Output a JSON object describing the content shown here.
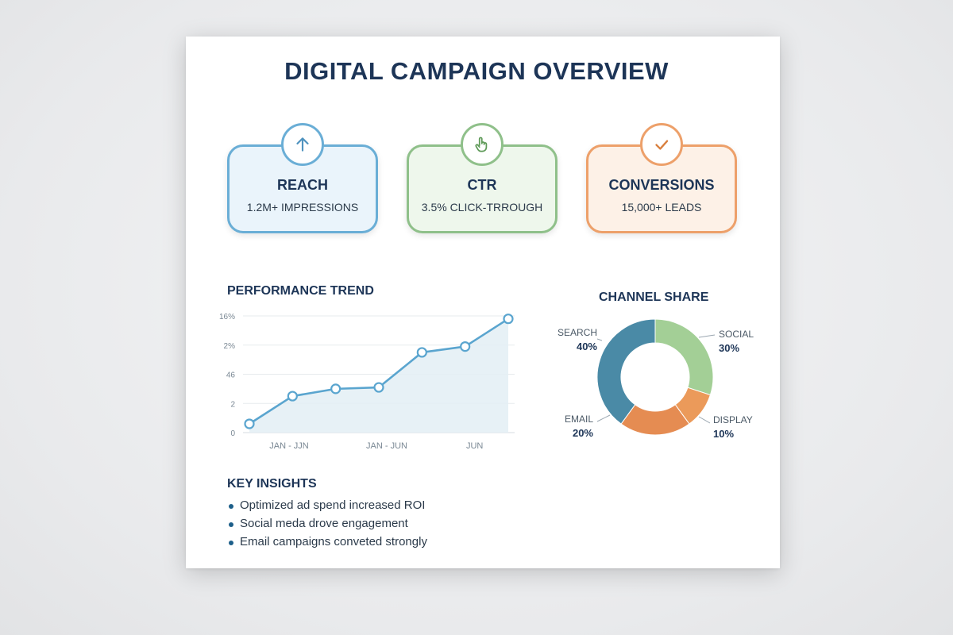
{
  "title": "DIGITAL CAMPAIGN OVERVIEW",
  "kpis": [
    {
      "label": "REACH",
      "value": "1.2M+ IMPRESSIONS",
      "icon": "arrow-up-icon",
      "color": "#6aaed6"
    },
    {
      "label": "CTR",
      "value": "3.5% CLICK-TRROUGH",
      "icon": "pointer-hand-icon",
      "color": "#8fc08a"
    },
    {
      "label": "CONVERSIONS",
      "value": "15,000+ LEADS",
      "icon": "checkmark-icon",
      "color": "#eda06a"
    }
  ],
  "performance": {
    "title": "PERFORMANCE TREND",
    "y_ticks": [
      "0",
      "2",
      "46",
      "2%",
      "16%"
    ]
  },
  "channel": {
    "title": "CHANNEL SHARE"
  },
  "insights": {
    "title": "KEY INSIGHTS",
    "items": [
      "Optimized ad spend increased ROI",
      "Social meda drove engagement",
      "Email campaigns conveted strongly"
    ]
  },
  "chart_data": [
    {
      "type": "area",
      "title": "PERFORMANCE TREND",
      "y_tick_labels": [
        "0",
        "2",
        "46",
        "2%",
        "16%"
      ],
      "x_tick_labels": [
        "JAN - JJN",
        "JAN - JUN",
        "JUN"
      ],
      "x": [
        1,
        2,
        3,
        4,
        5,
        6,
        7
      ],
      "values": [
        0.3,
        1.25,
        1.5,
        1.55,
        2.75,
        2.95,
        3.9
      ],
      "ylim": [
        0,
        4
      ],
      "grid": true,
      "color": "#5aa5cf"
    },
    {
      "type": "pie",
      "title": "CHANNEL SHARE",
      "donut": true,
      "slices": [
        {
          "label": "SOCIAL",
          "pct_label": "30%",
          "value": 30,
          "color": "#a3cf96"
        },
        {
          "label": "DISPLAY",
          "pct_label": "10%",
          "value": 10,
          "color": "#eb9a5a"
        },
        {
          "label": "EMAIL",
          "pct_label": "20%",
          "value": 20,
          "color": "#e58c52"
        },
        {
          "label": "SEARCH",
          "pct_label": "40%",
          "value": 40,
          "color": "#4a8aa6"
        }
      ]
    }
  ]
}
